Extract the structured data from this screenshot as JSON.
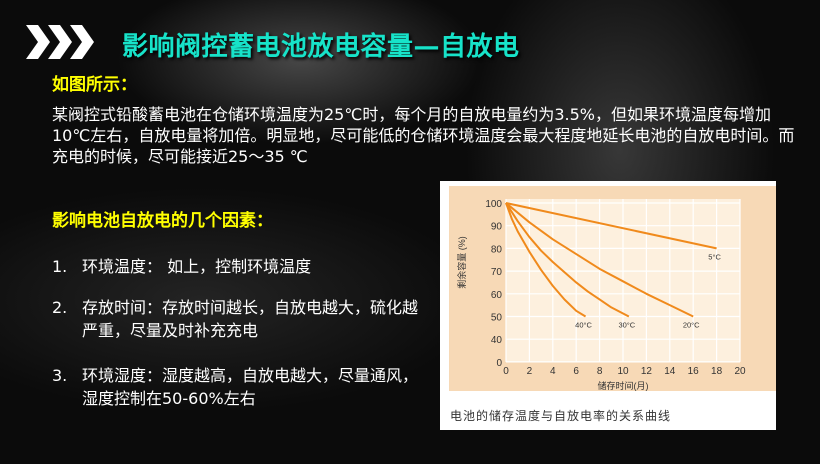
{
  "header": {
    "title": "影响阀控蓄电池放电容量—自放电",
    "icon": "triple-chevron-right-icon"
  },
  "section1": {
    "heading": "如图所示：",
    "paragraph": "某阀控式铅酸蓄电池在仓储环境温度为25℃时，每个月的自放电量约为3.5%，但如果环境温度每增加10℃左右，自放电量将加倍。明显地，尽可能低的仓储环境温度会最大程度地延长电池的自放电时间。而充电的时候，尽可能接近25～35 ℃"
  },
  "section2": {
    "heading": "影响电池自放电的几个因素：",
    "items": [
      {
        "num": "1.",
        "text": "环境温度： 如上，控制环境温度"
      },
      {
        "num": "2.",
        "text": "存放时间：存放时间越长，自放电越大，硫化越严重，尽量及时补充充电"
      },
      {
        "num": "3.",
        "text": "环境湿度：湿度越高，自放电越大，尽量通风，湿度控制在50-60%左右"
      }
    ]
  },
  "chart_data": {
    "type": "line",
    "caption": "电池的储存温度与自放电率的关系曲线",
    "xlabel": "储存时间(月)",
    "ylabel": "剩余容量 (%)",
    "xlim": [
      0,
      20
    ],
    "xticks": [
      "0",
      "2",
      "4",
      "6",
      "8",
      "10",
      "12",
      "14",
      "16",
      "18",
      "20"
    ],
    "yticks": [
      "0",
      "40",
      "50",
      "60",
      "70",
      "80",
      "90",
      "100"
    ],
    "y_axis_break": "40 to 0",
    "grid": true,
    "colors": {
      "line": "#f08a1c",
      "plot_bg": "#fdf0de",
      "outer_bg": "#f7d9b6"
    },
    "series": [
      {
        "name": "5°C",
        "points": [
          [
            0,
            100
          ],
          [
            18,
            80
          ]
        ]
      },
      {
        "name": "20°C",
        "points": [
          [
            0,
            100
          ],
          [
            2,
            91.5
          ],
          [
            4,
            84
          ],
          [
            6,
            77.5
          ],
          [
            8,
            71
          ],
          [
            10,
            65.5
          ],
          [
            12,
            60
          ],
          [
            14,
            55
          ],
          [
            16,
            50
          ]
        ]
      },
      {
        "name": "30°C",
        "points": [
          [
            0,
            100
          ],
          [
            1,
            92
          ],
          [
            2,
            85
          ],
          [
            3,
            79
          ],
          [
            4,
            74
          ],
          [
            5,
            69.5
          ],
          [
            6,
            65
          ],
          [
            7,
            61
          ],
          [
            8,
            57.5
          ],
          [
            9,
            54
          ],
          [
            10.5,
            50
          ]
        ]
      },
      {
        "name": "40°C",
        "points": [
          [
            0,
            100
          ],
          [
            0.5,
            93
          ],
          [
            1,
            87.5
          ],
          [
            2,
            78.5
          ],
          [
            3,
            70.5
          ],
          [
            4,
            63.5
          ],
          [
            5,
            57.5
          ],
          [
            6,
            52.5
          ],
          [
            6.8,
            50
          ]
        ]
      }
    ]
  }
}
